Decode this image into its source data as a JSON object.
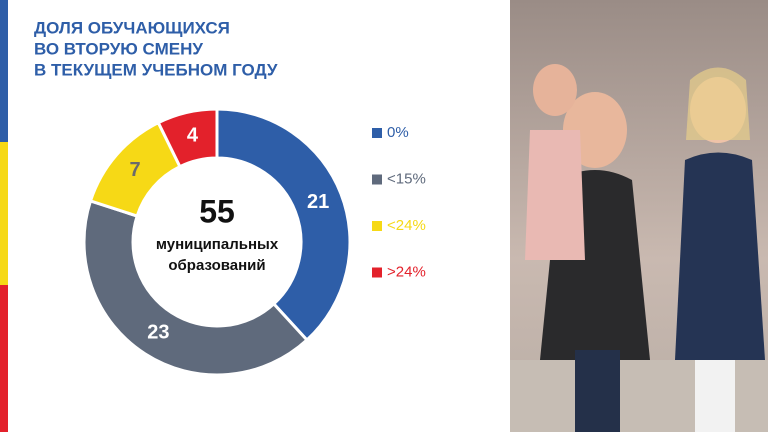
{
  "chart_data": {
    "type": "donut",
    "title_lines": [
      "ДОЛЯ ОБУЧАЮЩИХСЯ",
      "ВО ВТОРУЮ СМЕНУ",
      "В ТЕКУЩЕМ УЧЕБНОМ ГОДУ"
    ],
    "categories": [
      "0%",
      "<15%",
      "<24%",
      ">24%"
    ],
    "values": [
      21,
      23,
      7,
      4
    ],
    "colors": [
      "#2e5ea8",
      "#5f6a7c",
      "#f6d916",
      "#e3212b"
    ],
    "label_colors": [
      "#ffffff",
      "#ffffff",
      "#6b6b6b",
      "#ffffff"
    ],
    "center_value": 55,
    "center_label_lines": [
      "муниципальных",
      "образований"
    ],
    "legend": "right"
  }
}
